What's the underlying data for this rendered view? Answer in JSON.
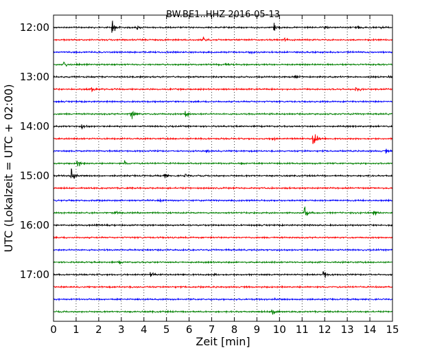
{
  "chart_data": {
    "type": "line",
    "title": "BW.BE1..HHZ 2016-05-13",
    "xlabel": "Zeit  [min]",
    "ylabel": "UTC (Lokalzeit = UTC + 02:00)",
    "xlim": [
      0,
      15
    ],
    "xticks": [
      0,
      1,
      2,
      3,
      4,
      5,
      6,
      7,
      8,
      9,
      10,
      11,
      12,
      13,
      14,
      15
    ],
    "grid": true,
    "row_minutes": 15,
    "start_time": "12:00",
    "hour_labels": [
      {
        "label": "12:00",
        "row": 0
      },
      {
        "label": "13:00",
        "row": 4
      },
      {
        "label": "14:00",
        "row": 8
      },
      {
        "label": "15:00",
        "row": 12
      },
      {
        "label": "16:00",
        "row": 16
      },
      {
        "label": "17:00",
        "row": 20
      }
    ],
    "colors": [
      "#000000",
      "#ff0000",
      "#0000ff",
      "#008000"
    ],
    "traces": [
      {
        "row": 0,
        "events": [
          {
            "t": 2.6,
            "amp": 1.0
          },
          {
            "t": 3.7,
            "amp": 0.25
          },
          {
            "t": 9.75,
            "amp": 0.65
          },
          {
            "t": 12.0,
            "amp": 0.25
          },
          {
            "t": 13.4,
            "amp": 0.3
          },
          {
            "t": 14.5,
            "amp": 0.25
          }
        ]
      },
      {
        "row": 1,
        "events": [
          {
            "t": 6.6,
            "amp": 0.35
          },
          {
            "t": 10.2,
            "amp": 0.15
          }
        ]
      },
      {
        "row": 2,
        "events": [
          {
            "t": 8.7,
            "amp": 0.25
          }
        ]
      },
      {
        "row": 3,
        "events": [
          {
            "t": 0.45,
            "amp": 0.4
          },
          {
            "t": 7.6,
            "amp": 0.35
          }
        ]
      },
      {
        "row": 4,
        "events": [
          {
            "t": 10.7,
            "amp": 0.25
          },
          {
            "t": 14.8,
            "amp": 0.15
          }
        ]
      },
      {
        "row": 5,
        "events": [
          {
            "t": 1.7,
            "amp": 0.35
          },
          {
            "t": 13.4,
            "amp": 0.45
          }
        ]
      },
      {
        "row": 6,
        "events": [
          {
            "t": 14.2,
            "amp": 0.12
          }
        ]
      },
      {
        "row": 7,
        "events": [
          {
            "t": 3.45,
            "amp": 1.0
          },
          {
            "t": 5.85,
            "amp": 0.7
          }
        ]
      },
      {
        "row": 8,
        "events": [
          {
            "t": 1.25,
            "amp": 0.3
          }
        ]
      },
      {
        "row": 9,
        "events": [
          {
            "t": 9.7,
            "amp": 0.2
          },
          {
            "t": 11.5,
            "amp": 1.5
          }
        ]
      },
      {
        "row": 10,
        "events": [
          {
            "t": 6.8,
            "amp": 0.15
          },
          {
            "t": 14.7,
            "amp": 0.25
          }
        ]
      },
      {
        "row": 11,
        "events": [
          {
            "t": 1.05,
            "amp": 0.85
          },
          {
            "t": 3.15,
            "amp": 0.3
          },
          {
            "t": 8.3,
            "amp": 0.15
          }
        ]
      },
      {
        "row": 12,
        "events": [
          {
            "t": 0.8,
            "amp": 1.2
          },
          {
            "t": 4.9,
            "amp": 0.35
          },
          {
            "t": 5.8,
            "amp": 0.2
          }
        ]
      },
      {
        "row": 13,
        "events": []
      },
      {
        "row": 14,
        "events": [
          {
            "t": 4.7,
            "amp": 0.12
          }
        ]
      },
      {
        "row": 15,
        "events": [
          {
            "t": 2.7,
            "amp": 0.3
          },
          {
            "t": 11.1,
            "amp": 1.0
          },
          {
            "t": 14.2,
            "amp": 0.4
          }
        ]
      },
      {
        "row": 16,
        "events": [
          {
            "t": 1.9,
            "amp": 0.15
          }
        ]
      },
      {
        "row": 17,
        "events": []
      },
      {
        "row": 18,
        "events": []
      },
      {
        "row": 19,
        "events": [
          {
            "t": 2.9,
            "amp": 0.15
          }
        ]
      },
      {
        "row": 20,
        "events": [
          {
            "t": 4.3,
            "amp": 0.3
          },
          {
            "t": 7.1,
            "amp": 0.15
          },
          {
            "t": 11.95,
            "amp": 0.6
          }
        ]
      },
      {
        "row": 21,
        "events": []
      },
      {
        "row": 22,
        "events": [
          {
            "t": 9.8,
            "amp": 0.15
          }
        ]
      },
      {
        "row": 23,
        "events": [
          {
            "t": 9.7,
            "amp": 0.85
          }
        ]
      }
    ]
  }
}
